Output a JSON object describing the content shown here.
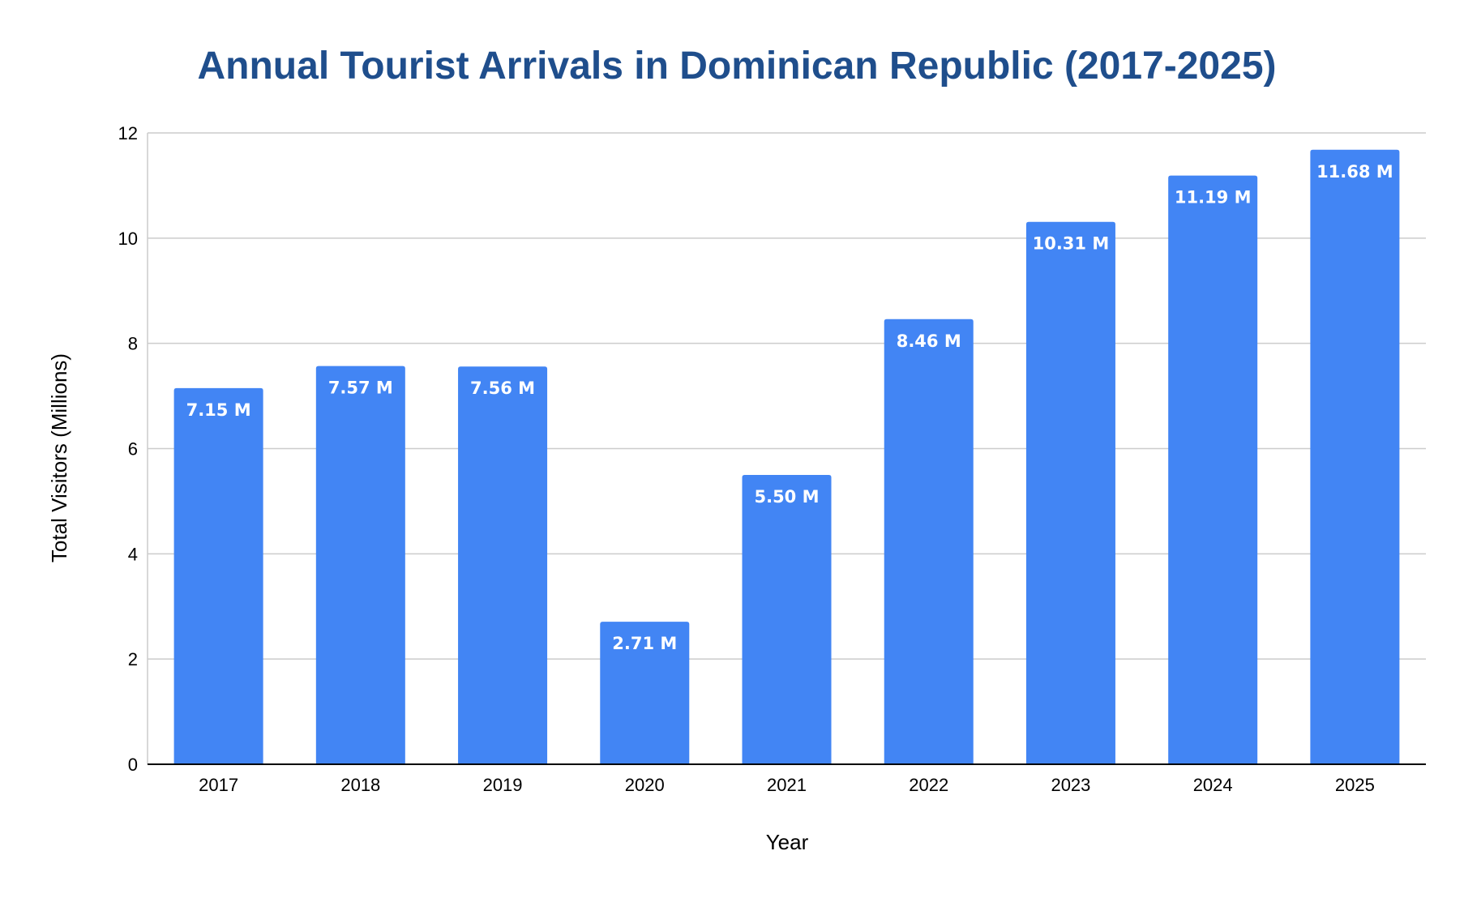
{
  "colors": {
    "title": "#1f4e8c",
    "bar": "#4285f4",
    "grid": "#cccccc",
    "axis": "#000000",
    "background": "#ffffff",
    "data_label": "#ffffff"
  },
  "chart_data": {
    "type": "bar",
    "title": "Annual Tourist Arrivals in Dominican Republic (2017-2025)",
    "xlabel": "Year",
    "ylabel": "Total Visitors (Millions)",
    "categories": [
      "2017",
      "2018",
      "2019",
      "2020",
      "2021",
      "2022",
      "2023",
      "2024",
      "2025"
    ],
    "values": [
      7.15,
      7.57,
      7.56,
      2.71,
      5.5,
      8.46,
      10.31,
      11.19,
      11.68
    ],
    "data_labels": [
      "7.15 M",
      "7.57 M",
      "7.56 M",
      "2.71 M",
      "5.50 M",
      "8.46 M",
      "10.31 M",
      "11.19 M",
      "11.68 M"
    ],
    "ylim": [
      0,
      12
    ],
    "yticks": [
      "0",
      "2",
      "4",
      "6",
      "8",
      "10",
      "12"
    ],
    "grid": true,
    "legend": "none"
  }
}
